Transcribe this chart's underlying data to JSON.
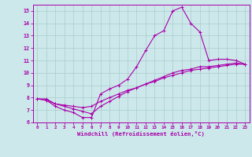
{
  "background_color": "#cce8ea",
  "grid_color": "#aacccc",
  "line_color": "#aa00aa",
  "xlim": [
    -0.5,
    23.5
  ],
  "ylim": [
    6,
    15.5
  ],
  "xticks": [
    0,
    1,
    2,
    3,
    4,
    5,
    6,
    7,
    8,
    9,
    10,
    11,
    12,
    13,
    14,
    15,
    16,
    17,
    18,
    19,
    20,
    21,
    22,
    23
  ],
  "yticks": [
    6,
    7,
    8,
    9,
    10,
    11,
    12,
    13,
    14,
    15
  ],
  "xlabel": "Windchill (Refroidissement éolien,°C)",
  "curve1_x": [
    0,
    1,
    2,
    3,
    4,
    5,
    6,
    7,
    8,
    9,
    10,
    11,
    12,
    13,
    14,
    15,
    16,
    17,
    18,
    19,
    20,
    21,
    22,
    23
  ],
  "curve1_y": [
    7.9,
    7.8,
    7.3,
    7.0,
    6.8,
    6.4,
    6.4,
    8.3,
    8.7,
    9.0,
    9.5,
    10.5,
    11.8,
    13.0,
    13.4,
    15.0,
    15.3,
    14.0,
    13.3,
    11.0,
    11.1,
    11.1,
    11.0,
    10.7
  ],
  "curve2_x": [
    0,
    1,
    2,
    3,
    4,
    5,
    6,
    7,
    8,
    9,
    10,
    11,
    12,
    13,
    14,
    15,
    16,
    17,
    18,
    19,
    20,
    21,
    22,
    23
  ],
  "curve2_y": [
    7.9,
    7.8,
    7.5,
    7.4,
    7.3,
    7.2,
    7.3,
    7.7,
    8.0,
    8.3,
    8.6,
    8.8,
    9.1,
    9.3,
    9.6,
    9.8,
    10.0,
    10.2,
    10.3,
    10.4,
    10.5,
    10.6,
    10.7,
    10.7
  ],
  "curve3_x": [
    0,
    1,
    2,
    3,
    4,
    5,
    6,
    7,
    8,
    9,
    10,
    11,
    12,
    13,
    14,
    15,
    16,
    17,
    18,
    19,
    20,
    21,
    22,
    23
  ],
  "curve3_y": [
    7.9,
    7.9,
    7.5,
    7.3,
    7.1,
    6.9,
    6.7,
    7.3,
    7.7,
    8.1,
    8.5,
    8.8,
    9.1,
    9.4,
    9.7,
    10.0,
    10.2,
    10.3,
    10.5,
    10.5,
    10.6,
    10.7,
    10.8,
    10.7
  ]
}
